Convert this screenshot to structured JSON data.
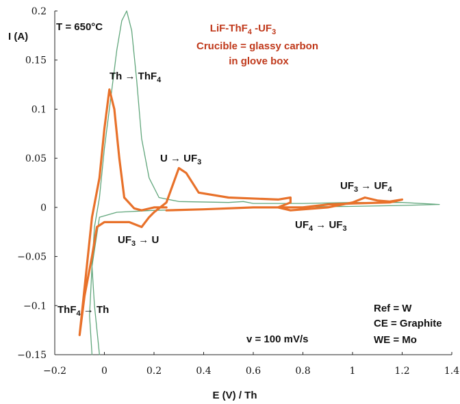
{
  "chart_data": {
    "type": "line",
    "title": "",
    "xlabel": "E (V) / Th",
    "ylabel": "I (A)",
    "xlim": [
      -0.2,
      1.4
    ],
    "ylim": [
      -0.15,
      0.2
    ],
    "x_ticks": [
      "−0.2",
      "0",
      "0.2",
      "0.4",
      "0.6",
      "0.8",
      "1",
      "1.2",
      "1.4"
    ],
    "y_ticks": [
      "−0.15",
      "−0.1",
      "−0.05",
      "0",
      "0.05",
      "0.1",
      "0.15",
      "0.2"
    ],
    "grid": false,
    "legend": "none",
    "colors": {
      "series_orange": "#e8712a",
      "series_green": "#5fa57a",
      "annotation_red": "#c0391b"
    },
    "series": [
      {
        "color": "#e8712a",
        "points": [
          [
            0.25,
            0.0
          ],
          [
            0.2,
            0.0
          ],
          [
            0.15,
            -0.003
          ],
          [
            0.12,
            -0.001
          ],
          [
            0.08,
            0.01
          ],
          [
            0.06,
            0.05
          ],
          [
            0.04,
            0.1
          ],
          [
            0.02,
            0.12
          ],
          [
            0.0,
            0.08
          ],
          [
            -0.02,
            0.03
          ],
          [
            -0.05,
            -0.01
          ],
          [
            -0.1,
            -0.13
          ],
          [
            -0.08,
            -0.09
          ],
          [
            -0.05,
            -0.05
          ],
          [
            -0.03,
            -0.02
          ],
          [
            0.0,
            -0.015
          ],
          [
            0.1,
            -0.015
          ],
          [
            0.15,
            -0.02
          ],
          [
            0.18,
            -0.01
          ],
          [
            0.2,
            -0.005
          ],
          [
            0.25,
            0.005
          ],
          [
            0.3,
            0.04
          ],
          [
            0.33,
            0.035
          ],
          [
            0.38,
            0.015
          ],
          [
            0.5,
            0.01
          ],
          [
            0.7,
            0.008
          ],
          [
            0.75,
            0.01
          ],
          [
            0.75,
            0.005
          ],
          [
            0.7,
            0.0
          ],
          [
            0.6,
            0.0
          ],
          [
            0.4,
            -0.002
          ],
          [
            0.25,
            -0.003
          ]
        ],
        "points_b": [
          [
            0.7,
            0.0
          ],
          [
            0.75,
            -0.003
          ],
          [
            0.9,
            0.0
          ],
          [
            1.0,
            0.005
          ],
          [
            1.05,
            0.01
          ],
          [
            1.1,
            0.007
          ],
          [
            1.15,
            0.006
          ],
          [
            1.2,
            0.008
          ],
          [
            1.15,
            0.005
          ],
          [
            1.0,
            0.004
          ],
          [
            0.9,
            0.003
          ],
          [
            0.8,
            0.0
          ],
          [
            0.72,
            0.0
          ]
        ]
      },
      {
        "color": "#5fa57a",
        "points": [
          [
            -0.02,
            -0.15
          ],
          [
            -0.04,
            -0.1
          ],
          [
            -0.05,
            -0.06
          ],
          [
            -0.04,
            -0.02
          ],
          [
            -0.02,
            0.01
          ],
          [
            0.0,
            0.06
          ],
          [
            0.03,
            0.12
          ],
          [
            0.05,
            0.16
          ],
          [
            0.07,
            0.19
          ],
          [
            0.09,
            0.2
          ],
          [
            0.11,
            0.18
          ],
          [
            0.13,
            0.13
          ],
          [
            0.15,
            0.07
          ],
          [
            0.18,
            0.03
          ],
          [
            0.22,
            0.01
          ],
          [
            0.3,
            0.006
          ],
          [
            0.5,
            0.005
          ],
          [
            0.56,
            0.006
          ],
          [
            0.6,
            0.004
          ],
          [
            0.8,
            0.004
          ],
          [
            1.0,
            0.005
          ],
          [
            1.2,
            0.005
          ],
          [
            1.35,
            0.003
          ],
          [
            1.2,
            0.002
          ],
          [
            1.0,
            0.001
          ],
          [
            0.6,
            0.0
          ],
          [
            0.4,
            -0.002
          ],
          [
            0.2,
            -0.003
          ],
          [
            0.05,
            -0.005
          ],
          [
            -0.02,
            -0.01
          ],
          [
            -0.05,
            -0.06
          ],
          [
            -0.06,
            -0.11
          ],
          [
            -0.05,
            -0.15
          ]
        ]
      }
    ],
    "annotations": {
      "temp": "T = 650°C",
      "header1": "LiF-ThF4 -UF3",
      "header2": "Crucible = glassy carbon",
      "header3": "in glove box",
      "th_ox": "Th → ThF4",
      "u_ox": "U → UF3",
      "uf3_ox": "UF3 → UF4",
      "uf4_red": "UF4 → UF3",
      "uf3_red": "UF3 → U",
      "thf4_red": "ThF4 → Th",
      "ref": "Ref = W",
      "ce": "CE = Graphite",
      "we": "WE = Mo",
      "rate": "v = 100 mV/s"
    }
  }
}
